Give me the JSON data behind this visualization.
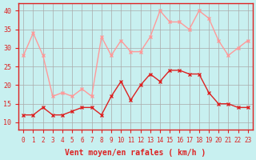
{
  "hours": [
    0,
    1,
    2,
    3,
    4,
    5,
    6,
    7,
    8,
    9,
    10,
    11,
    12,
    13,
    14,
    15,
    16,
    17,
    18,
    19,
    20,
    21,
    22,
    23
  ],
  "vent_moyen": [
    12,
    12,
    14,
    12,
    12,
    13,
    14,
    14,
    12,
    17,
    21,
    16,
    20,
    23,
    21,
    24,
    24,
    23,
    23,
    18,
    15,
    15,
    14,
    14
  ],
  "rafales": [
    28,
    34,
    28,
    17,
    18,
    17,
    19,
    17,
    33,
    28,
    32,
    29,
    29,
    33,
    40,
    37,
    37,
    35,
    40,
    38,
    32,
    28,
    30,
    32
  ],
  "bg_color": "#c8f0f0",
  "grid_color": "#aaaaaa",
  "line_moyen_color": "#dd2222",
  "line_rafales_color": "#ff9999",
  "marker_size": 3,
  "xlabel": "Vent moyen/en rafales ( km/h )",
  "xlabel_color": "#dd2222",
  "tick_color": "#dd2222",
  "ylim": [
    8,
    42
  ],
  "yticks": [
    10,
    15,
    20,
    25,
    30,
    35,
    40
  ],
  "spine_color": "#dd2222"
}
